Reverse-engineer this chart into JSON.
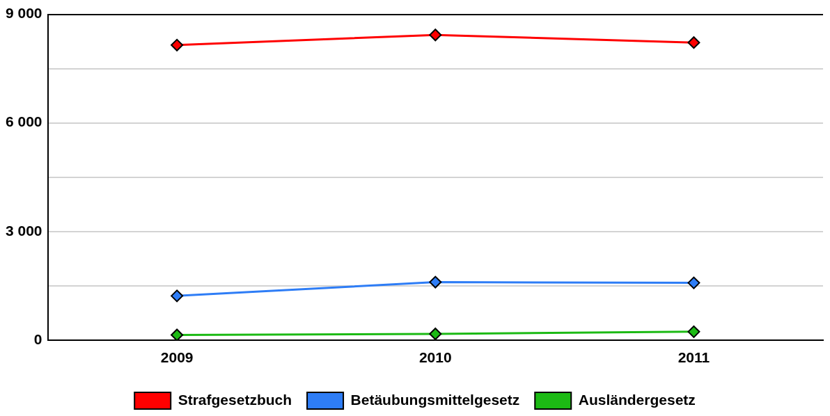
{
  "chart_data": {
    "type": "line",
    "categories": [
      "2009",
      "2010",
      "2011"
    ],
    "series": [
      {
        "name": "Strafgesetzbuch",
        "color": "#ff0000",
        "values": [
          8150,
          8430,
          8220
        ]
      },
      {
        "name": "Betäubungsmittelgesetz",
        "color": "#2e7df6",
        "values": [
          1220,
          1600,
          1580
        ]
      },
      {
        "name": "Ausländergesetz",
        "color": "#1cba14",
        "values": [
          140,
          170,
          230
        ]
      }
    ],
    "ylim": [
      0,
      9000
    ],
    "yticks": [
      {
        "value": 0,
        "label": "0"
      },
      {
        "value": 1500,
        "label": null
      },
      {
        "value": 3000,
        "label": "3 000"
      },
      {
        "value": 4500,
        "label": null
      },
      {
        "value": 6000,
        "label": "6 000"
      },
      {
        "value": 7500,
        "label": null
      },
      {
        "value": 9000,
        "label": "9 000"
      }
    ],
    "grid": "y",
    "legend": "bottom",
    "marker": "diamond",
    "line_style": "solid"
  }
}
